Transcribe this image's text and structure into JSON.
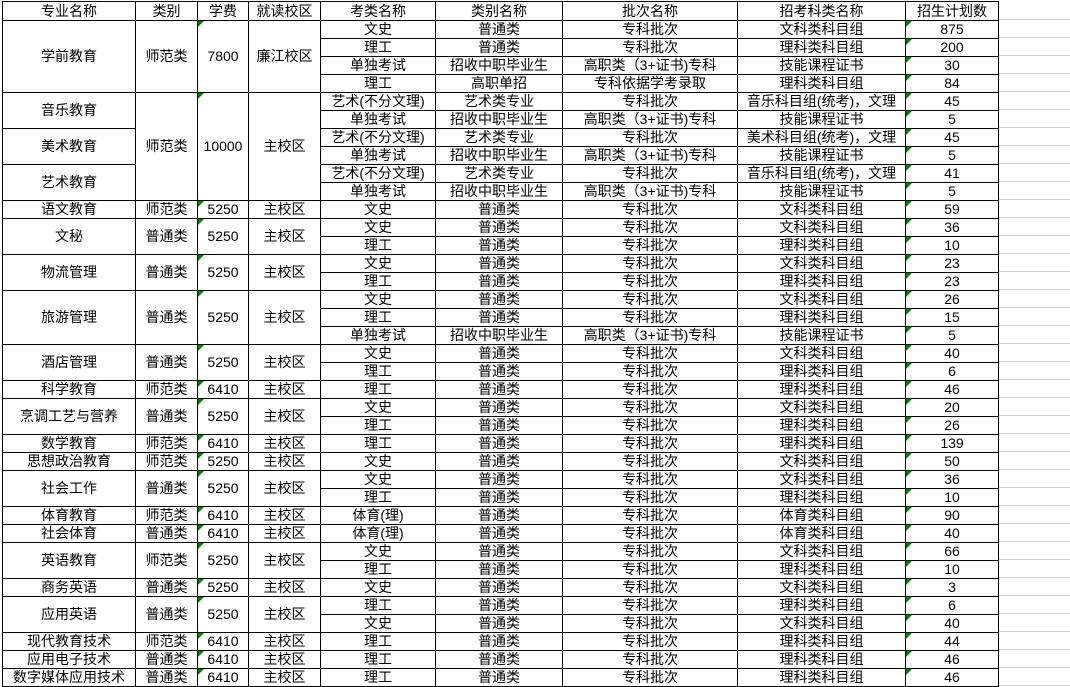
{
  "colors": {
    "flag_green": "#008000",
    "grid_line": "#d0d0d0",
    "cell_border": "#000000"
  },
  "flags": {
    "tuition_cells_marked": true,
    "plan_cells_marked": true
  },
  "table": {
    "columns": [
      "专业名称",
      "类别",
      "学费",
      "就读校区",
      "考类名称",
      "类别名称",
      "批次名称",
      "招考科类名称",
      "招生计划数"
    ],
    "groups": [
      {
        "category": "师范类",
        "tuition": "7800",
        "campus": "廉江校区",
        "majors": [
          {
            "name": "学前教育",
            "rows": [
              {
                "exam": "文史",
                "type": "普通类",
                "batch": "专科批次",
                "subject": "文科类科目组",
                "plan": "875"
              },
              {
                "exam": "理工",
                "type": "普通类",
                "batch": "专科批次",
                "subject": "理科类科目组",
                "plan": "200"
              },
              {
                "exam": "单独考试",
                "type": "招收中职毕业生",
                "batch": "高职类（3+证书)专科",
                "subject": "技能课程证书",
                "plan": "30"
              },
              {
                "exam": "理工",
                "type": "高职单招",
                "batch": "专科依据学考录取",
                "subject": "理科类科目组",
                "plan": "84"
              }
            ]
          }
        ]
      },
      {
        "category": "师范类",
        "tuition": "10000",
        "campus": "主校区",
        "majors": [
          {
            "name": "音乐教育",
            "rows": [
              {
                "exam": "艺术(不分文理)",
                "type": "艺术类专业",
                "batch": "专科批次",
                "subject": "音乐科目组(统考)，文理",
                "plan": "45"
              },
              {
                "exam": "单独考试",
                "type": "招收中职毕业生",
                "batch": "高职类（3+证书)专科",
                "subject": "技能课程证书",
                "plan": "5"
              }
            ]
          },
          {
            "name": "美术教育",
            "rows": [
              {
                "exam": "艺术(不分文理)",
                "type": "艺术类专业",
                "batch": "专科批次",
                "subject": "美术科目组(统考)，文理",
                "plan": "45"
              },
              {
                "exam": "单独考试",
                "type": "招收中职毕业生",
                "batch": "高职类（3+证书)专科",
                "subject": "技能课程证书",
                "plan": "5"
              }
            ]
          },
          {
            "name": "艺术教育",
            "rows": [
              {
                "exam": "艺术(不分文理)",
                "type": "艺术类专业",
                "batch": "专科批次",
                "subject": "音乐科目组(统考)，文理",
                "plan": "41"
              },
              {
                "exam": "单独考试",
                "type": "招收中职毕业生",
                "batch": "高职类（3+证书)专科",
                "subject": "技能课程证书",
                "plan": "5"
              }
            ]
          }
        ]
      },
      {
        "category": "师范类",
        "tuition": "5250",
        "campus": "主校区",
        "majors": [
          {
            "name": "语文教育",
            "rows": [
              {
                "exam": "文史",
                "type": "普通类",
                "batch": "专科批次",
                "subject": "文科类科目组",
                "plan": "59"
              }
            ]
          }
        ]
      },
      {
        "category": "普通类",
        "tuition": "5250",
        "campus": "主校区",
        "majors": [
          {
            "name": "文秘",
            "rows": [
              {
                "exam": "文史",
                "type": "普通类",
                "batch": "专科批次",
                "subject": "文科类科目组",
                "plan": "36"
              },
              {
                "exam": "理工",
                "type": "普通类",
                "batch": "专科批次",
                "subject": "理科类科目组",
                "plan": "10"
              }
            ]
          }
        ]
      },
      {
        "category": "普通类",
        "tuition": "5250",
        "campus": "主校区",
        "majors": [
          {
            "name": "物流管理",
            "rows": [
              {
                "exam": "文史",
                "type": "普通类",
                "batch": "专科批次",
                "subject": "文科类科目组",
                "plan": "23"
              },
              {
                "exam": "理工",
                "type": "普通类",
                "batch": "专科批次",
                "subject": "理科类科目组",
                "plan": "23"
              }
            ]
          }
        ]
      },
      {
        "category": "普通类",
        "tuition": "5250",
        "campus": "主校区",
        "majors": [
          {
            "name": "旅游管理",
            "rows": [
              {
                "exam": "文史",
                "type": "普通类",
                "batch": "专科批次",
                "subject": "文科类科目组",
                "plan": "26"
              },
              {
                "exam": "理工",
                "type": "普通类",
                "batch": "专科批次",
                "subject": "理科类科目组",
                "plan": "15"
              },
              {
                "exam": "单独考试",
                "type": "招收中职毕业生",
                "batch": "高职类（3+证书)专科",
                "subject": "技能课程证书",
                "plan": "5"
              }
            ]
          }
        ]
      },
      {
        "category": "普通类",
        "tuition": "5250",
        "campus": "主校区",
        "majors": [
          {
            "name": "酒店管理",
            "rows": [
              {
                "exam": "文史",
                "type": "普通类",
                "batch": "专科批次",
                "subject": "文科类科目组",
                "plan": "40"
              },
              {
                "exam": "理工",
                "type": "普通类",
                "batch": "专科批次",
                "subject": "理科类科目组",
                "plan": "6"
              }
            ]
          }
        ]
      },
      {
        "category": "师范类",
        "tuition": "6410",
        "campus": "主校区",
        "majors": [
          {
            "name": "科学教育",
            "rows": [
              {
                "exam": "理工",
                "type": "普通类",
                "batch": "专科批次",
                "subject": "理科类科目组",
                "plan": "46"
              }
            ]
          }
        ]
      },
      {
        "category": "普通类",
        "tuition": "5250",
        "campus": "主校区",
        "majors": [
          {
            "name": "烹调工艺与营养",
            "rows": [
              {
                "exam": "文史",
                "type": "普通类",
                "batch": "专科批次",
                "subject": "文科类科目组",
                "plan": "20"
              },
              {
                "exam": "理工",
                "type": "普通类",
                "batch": "专科批次",
                "subject": "理科类科目组",
                "plan": "26"
              }
            ]
          }
        ]
      },
      {
        "category": "师范类",
        "tuition": "6410",
        "campus": "主校区",
        "majors": [
          {
            "name": "数学教育",
            "rows": [
              {
                "exam": "理工",
                "type": "普通类",
                "batch": "专科批次",
                "subject": "理科类科目组",
                "plan": "139"
              }
            ]
          }
        ]
      },
      {
        "category": "师范类",
        "tuition": "5250",
        "campus": "主校区",
        "majors": [
          {
            "name": "思想政治教育",
            "rows": [
              {
                "exam": "文史",
                "type": "普通类",
                "batch": "专科批次",
                "subject": "文科类科目组",
                "plan": "50"
              }
            ]
          }
        ]
      },
      {
        "category": "普通类",
        "tuition": "5250",
        "campus": "主校区",
        "majors": [
          {
            "name": "社会工作",
            "rows": [
              {
                "exam": "文史",
                "type": "普通类",
                "batch": "专科批次",
                "subject": "文科类科目组",
                "plan": "36"
              },
              {
                "exam": "理工",
                "type": "普通类",
                "batch": "专科批次",
                "subject": "理科类科目组",
                "plan": "10"
              }
            ]
          }
        ]
      },
      {
        "category": "师范类",
        "tuition": "6410",
        "campus": "主校区",
        "majors": [
          {
            "name": "体育教育",
            "rows": [
              {
                "exam": "体育(理)",
                "type": "普通类",
                "batch": "专科批次",
                "subject": "体育类科目组",
                "plan": "90"
              }
            ]
          }
        ]
      },
      {
        "category": "普通类",
        "tuition": "6410",
        "campus": "主校区",
        "majors": [
          {
            "name": "社会体育",
            "rows": [
              {
                "exam": "体育(理)",
                "type": "普通类",
                "batch": "专科批次",
                "subject": "体育类科目组",
                "plan": "40"
              }
            ]
          }
        ]
      },
      {
        "category": "师范类",
        "tuition": "5250",
        "campus": "主校区",
        "majors": [
          {
            "name": "英语教育",
            "rows": [
              {
                "exam": "文史",
                "type": "普通类",
                "batch": "专科批次",
                "subject": "文科类科目组",
                "plan": "66"
              },
              {
                "exam": "理工",
                "type": "普通类",
                "batch": "专科批次",
                "subject": "理科类科目组",
                "plan": "10"
              }
            ]
          }
        ]
      },
      {
        "category": "普通类",
        "tuition": "5250",
        "campus": "主校区",
        "majors": [
          {
            "name": "商务英语",
            "rows": [
              {
                "exam": "文史",
                "type": "普通类",
                "batch": "专科批次",
                "subject": "文科类科目组",
                "plan": "3"
              }
            ]
          }
        ]
      },
      {
        "category": "普通类",
        "tuition": "5250",
        "campus": "主校区",
        "majors": [
          {
            "name": "应用英语",
            "rows": [
              {
                "exam": "理工",
                "type": "普通类",
                "batch": "专科批次",
                "subject": "理科类科目组",
                "plan": "6"
              },
              {
                "exam": "文史",
                "type": "普通类",
                "batch": "专科批次",
                "subject": "文科类科目组",
                "plan": "40"
              }
            ]
          }
        ]
      },
      {
        "category": "师范类",
        "tuition": "6410",
        "campus": "主校区",
        "majors": [
          {
            "name": "现代教育技术",
            "rows": [
              {
                "exam": "理工",
                "type": "普通类",
                "batch": "专科批次",
                "subject": "理科类科目组",
                "plan": "44"
              }
            ]
          }
        ]
      },
      {
        "category": "普通类",
        "tuition": "6410",
        "campus": "主校区",
        "majors": [
          {
            "name": "应用电子技术",
            "rows": [
              {
                "exam": "理工",
                "type": "普通类",
                "batch": "专科批次",
                "subject": "理科类科目组",
                "plan": "46"
              }
            ]
          }
        ]
      },
      {
        "category": "普通类",
        "tuition": "6410",
        "campus": "主校区",
        "majors": [
          {
            "name": "数字媒体应用技术",
            "rows": [
              {
                "exam": "理工",
                "type": "普通类",
                "batch": "专科批次",
                "subject": "理科类科目组",
                "plan": "46"
              }
            ]
          }
        ]
      }
    ]
  }
}
